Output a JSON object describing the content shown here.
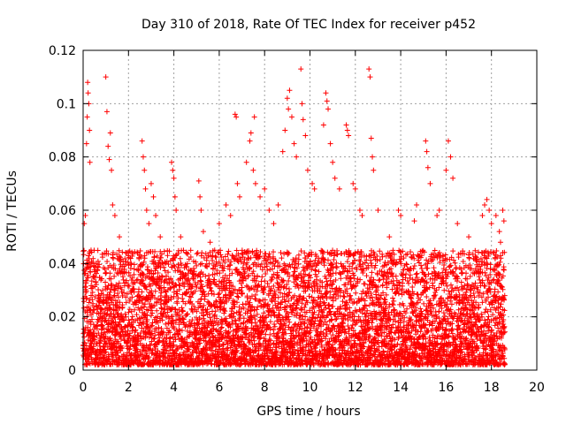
{
  "chart_data": {
    "type": "scatter",
    "title": "Day 310 of 2018, Rate Of TEC Index for receiver p452",
    "xlabel": "GPS time / hours",
    "ylabel": "ROTI / TECUs",
    "xlim": [
      0,
      20
    ],
    "ylim": [
      0,
      0.12
    ],
    "xticks": [
      0,
      2,
      4,
      6,
      8,
      10,
      12,
      14,
      16,
      18,
      20
    ],
    "xtick_labels": [
      "0",
      "2",
      "4",
      "6",
      "8",
      "10",
      "12",
      "14",
      "16",
      "18",
      "20"
    ],
    "yticks": [
      0,
      0.02,
      0.04,
      0.06,
      0.08,
      0.1,
      0.12
    ],
    "ytick_labels": [
      "0",
      "0.02",
      "0.04",
      "0.06",
      "0.08",
      "0.1",
      "0.12"
    ],
    "grid": true,
    "marker": "+",
    "color": "#ff0000",
    "x_range_of_data": [
      0,
      18.6
    ],
    "series": [
      {
        "name": "ROTI",
        "points": [
          [
            0.05,
            0.055
          ],
          [
            0.1,
            0.058
          ],
          [
            0.15,
            0.085
          ],
          [
            0.2,
            0.108
          ],
          [
            0.22,
            0.104
          ],
          [
            0.25,
            0.1
          ],
          [
            0.28,
            0.09
          ],
          [
            0.3,
            0.078
          ],
          [
            0.18,
            0.095
          ],
          [
            0.35,
            0.045
          ],
          [
            0.45,
            0.035
          ],
          [
            1.0,
            0.11
          ],
          [
            1.05,
            0.097
          ],
          [
            1.1,
            0.084
          ],
          [
            1.15,
            0.079
          ],
          [
            1.2,
            0.089
          ],
          [
            1.25,
            0.075
          ],
          [
            1.3,
            0.062
          ],
          [
            1.4,
            0.058
          ],
          [
            1.6,
            0.05
          ],
          [
            2.6,
            0.086
          ],
          [
            2.65,
            0.08
          ],
          [
            2.7,
            0.075
          ],
          [
            2.75,
            0.068
          ],
          [
            2.8,
            0.06
          ],
          [
            2.9,
            0.055
          ],
          [
            3.0,
            0.07
          ],
          [
            3.1,
            0.065
          ],
          [
            3.2,
            0.058
          ],
          [
            3.4,
            0.05
          ],
          [
            3.9,
            0.078
          ],
          [
            3.95,
            0.075
          ],
          [
            4.0,
            0.072
          ],
          [
            4.05,
            0.065
          ],
          [
            4.1,
            0.06
          ],
          [
            4.3,
            0.05
          ],
          [
            5.1,
            0.071
          ],
          [
            5.15,
            0.065
          ],
          [
            5.2,
            0.06
          ],
          [
            5.3,
            0.052
          ],
          [
            5.6,
            0.048
          ],
          [
            5.8,
            0.045
          ],
          [
            6.0,
            0.055
          ],
          [
            6.3,
            0.062
          ],
          [
            6.5,
            0.058
          ],
          [
            6.7,
            0.096
          ],
          [
            6.75,
            0.095
          ],
          [
            6.8,
            0.07
          ],
          [
            6.9,
            0.065
          ],
          [
            7.2,
            0.078
          ],
          [
            7.35,
            0.086
          ],
          [
            7.4,
            0.089
          ],
          [
            7.5,
            0.075
          ],
          [
            7.55,
            0.095
          ],
          [
            7.6,
            0.07
          ],
          [
            7.8,
            0.065
          ],
          [
            8.0,
            0.068
          ],
          [
            8.2,
            0.06
          ],
          [
            8.4,
            0.055
          ],
          [
            8.6,
            0.062
          ],
          [
            8.8,
            0.082
          ],
          [
            8.9,
            0.09
          ],
          [
            9.0,
            0.102
          ],
          [
            9.05,
            0.098
          ],
          [
            9.1,
            0.105
          ],
          [
            9.2,
            0.095
          ],
          [
            9.3,
            0.085
          ],
          [
            9.4,
            0.08
          ],
          [
            9.6,
            0.113
          ],
          [
            9.65,
            0.1
          ],
          [
            9.7,
            0.094
          ],
          [
            9.8,
            0.088
          ],
          [
            9.9,
            0.075
          ],
          [
            10.1,
            0.07
          ],
          [
            10.2,
            0.068
          ],
          [
            10.7,
            0.104
          ],
          [
            10.75,
            0.101
          ],
          [
            10.8,
            0.098
          ],
          [
            10.6,
            0.092
          ],
          [
            10.9,
            0.085
          ],
          [
            11.0,
            0.078
          ],
          [
            11.1,
            0.072
          ],
          [
            11.3,
            0.068
          ],
          [
            11.6,
            0.092
          ],
          [
            11.65,
            0.09
          ],
          [
            11.7,
            0.088
          ],
          [
            11.9,
            0.07
          ],
          [
            12.0,
            0.068
          ],
          [
            12.2,
            0.06
          ],
          [
            12.3,
            0.058
          ],
          [
            12.6,
            0.113
          ],
          [
            12.65,
            0.11
          ],
          [
            12.7,
            0.087
          ],
          [
            12.75,
            0.08
          ],
          [
            12.8,
            0.075
          ],
          [
            13.0,
            0.06
          ],
          [
            13.5,
            0.05
          ],
          [
            13.9,
            0.06
          ],
          [
            14.0,
            0.058
          ],
          [
            14.6,
            0.056
          ],
          [
            14.7,
            0.062
          ],
          [
            15.1,
            0.086
          ],
          [
            15.15,
            0.082
          ],
          [
            15.2,
            0.076
          ],
          [
            15.3,
            0.07
          ],
          [
            15.6,
            0.058
          ],
          [
            15.7,
            0.06
          ],
          [
            16.0,
            0.075
          ],
          [
            16.1,
            0.086
          ],
          [
            16.2,
            0.08
          ],
          [
            16.3,
            0.072
          ],
          [
            16.5,
            0.055
          ],
          [
            17.0,
            0.05
          ],
          [
            17.6,
            0.058
          ],
          [
            17.7,
            0.062
          ],
          [
            17.8,
            0.064
          ],
          [
            17.9,
            0.06
          ],
          [
            18.0,
            0.055
          ],
          [
            18.2,
            0.058
          ],
          [
            18.35,
            0.052
          ],
          [
            18.4,
            0.048
          ],
          [
            18.5,
            0.06
          ],
          [
            18.55,
            0.056
          ]
        ]
      }
    ],
    "bulk_distribution": {
      "description": "dense cloud of points every ~0.003 h",
      "x_start": 0,
      "x_end": 18.6,
      "typical_min": 0.002,
      "typical_max": 0.045
    }
  }
}
